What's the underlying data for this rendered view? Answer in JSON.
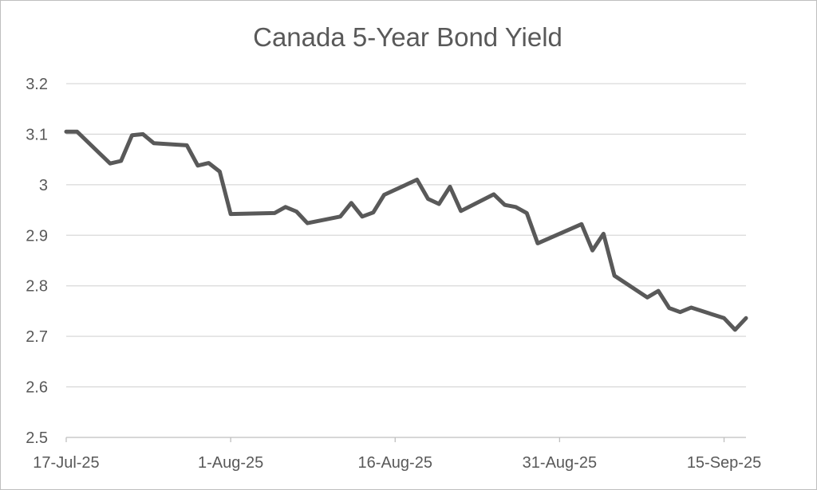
{
  "chart_data": {
    "type": "line",
    "title": "Canada 5-Year Bond Yield",
    "xlabel": "",
    "ylabel": "",
    "x_tick_labels": [
      "17-Jul-25",
      "1-Aug-25",
      "16-Aug-25",
      "31-Aug-25",
      "15-Sep-25"
    ],
    "x_tick_dates": [
      "2025-07-17",
      "2025-08-01",
      "2025-08-16",
      "2025-08-31",
      "2025-09-15"
    ],
    "xlim": [
      "2025-07-17",
      "2025-09-17"
    ],
    "y_tick_labels": [
      "2.5",
      "2.6",
      "2.7",
      "2.8",
      "2.9",
      "3",
      "3.1",
      "3.2"
    ],
    "y_ticks": [
      2.5,
      2.6,
      2.7,
      2.8,
      2.9,
      3.0,
      3.1,
      3.2
    ],
    "ylim": [
      2.5,
      3.2
    ],
    "grid": "horizontal",
    "legend": "none",
    "line_color": "#595959",
    "gridline_color": "#d9d9d9",
    "series": [
      {
        "x": [
          "2025-07-17",
          "2025-07-18",
          "2025-07-21",
          "2025-07-22",
          "2025-07-23",
          "2025-07-24",
          "2025-07-25",
          "2025-07-28",
          "2025-07-29",
          "2025-07-30",
          "2025-07-31",
          "2025-08-01",
          "2025-08-05",
          "2025-08-06",
          "2025-08-07",
          "2025-08-08",
          "2025-08-11",
          "2025-08-12",
          "2025-08-13",
          "2025-08-14",
          "2025-08-15",
          "2025-08-18",
          "2025-08-19",
          "2025-08-20",
          "2025-08-21",
          "2025-08-22",
          "2025-08-25",
          "2025-08-26",
          "2025-08-27",
          "2025-08-28",
          "2025-08-29",
          "2025-09-02",
          "2025-09-03",
          "2025-09-04",
          "2025-09-05",
          "2025-09-08",
          "2025-09-09",
          "2025-09-10",
          "2025-09-11",
          "2025-09-12",
          "2025-09-15",
          "2025-09-16",
          "2025-09-17"
        ],
        "values": [
          3.105,
          3.105,
          3.042,
          3.047,
          3.098,
          3.1,
          3.082,
          3.078,
          3.038,
          3.043,
          3.026,
          2.942,
          2.944,
          2.956,
          2.947,
          2.924,
          2.937,
          2.964,
          2.937,
          2.945,
          2.98,
          3.01,
          2.972,
          2.962,
          2.996,
          2.948,
          2.981,
          2.96,
          2.956,
          2.944,
          2.884,
          2.922,
          2.87,
          2.903,
          2.82,
          2.777,
          2.79,
          2.756,
          2.748,
          2.757,
          2.736,
          2.713,
          2.736
        ]
      }
    ]
  }
}
